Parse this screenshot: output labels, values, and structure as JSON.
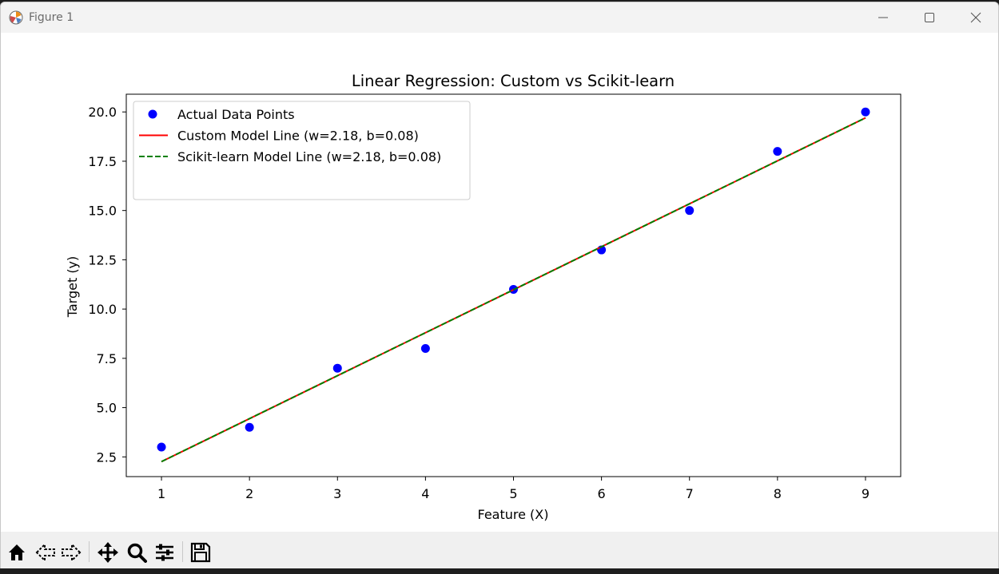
{
  "window": {
    "title": "Figure 1"
  },
  "chart_data": {
    "type": "scatter",
    "title": "Linear Regression: Custom vs Scikit-learn",
    "xlabel": "Feature (X)",
    "ylabel": "Target (y)",
    "xlim": [
      0.6,
      9.4
    ],
    "ylim": [
      1.5,
      20.9
    ],
    "xticks": [
      1,
      2,
      3,
      4,
      5,
      6,
      7,
      8,
      9
    ],
    "yticks": [
      2.5,
      5.0,
      7.5,
      10.0,
      12.5,
      15.0,
      17.5,
      20.0
    ],
    "ytick_labels": [
      "2.5",
      "5.0",
      "7.5",
      "10.0",
      "12.5",
      "15.0",
      "17.5",
      "20.0"
    ],
    "grid": false,
    "legend_position": "upper-left",
    "series": [
      {
        "name": "Actual Data Points",
        "kind": "scatter",
        "color": "#0000ff",
        "x": [
          1,
          2,
          3,
          4,
          5,
          6,
          7,
          8,
          9
        ],
        "y": [
          3,
          4,
          7,
          8,
          11,
          13,
          15,
          18,
          20
        ]
      },
      {
        "name": "Custom Model Line (w=2.18, b=0.08)",
        "kind": "line",
        "style": "solid",
        "color": "#ff0000",
        "w": 2.18,
        "b": 0.08,
        "x": [
          1,
          9
        ]
      },
      {
        "name": "Scikit-learn Model Line (w=2.18, b=0.08)",
        "kind": "line",
        "style": "dashed",
        "color": "#008000",
        "w": 2.18,
        "b": 0.08,
        "x": [
          1,
          9
        ]
      }
    ]
  },
  "toolbar": {
    "buttons": [
      "home-icon",
      "back-icon",
      "forward-icon",
      "pan-icon",
      "zoom-icon",
      "configure-subplots-icon",
      "save-icon"
    ]
  }
}
